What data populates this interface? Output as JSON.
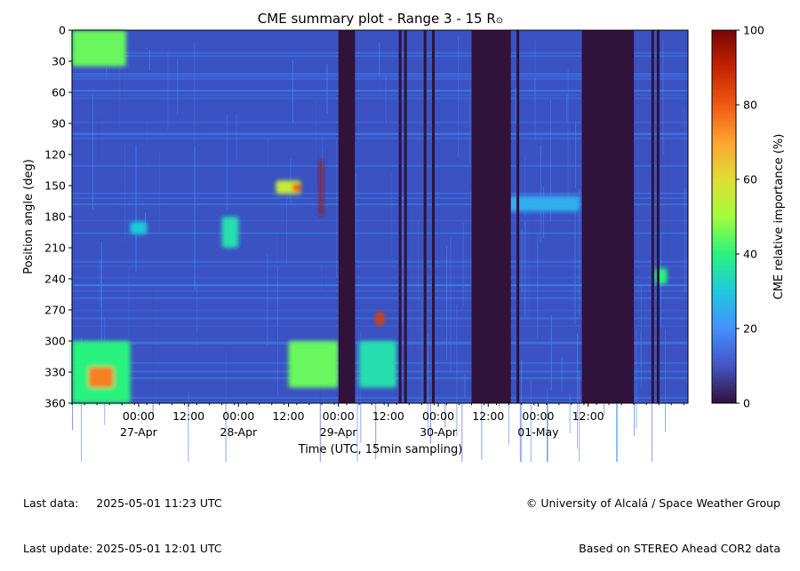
{
  "chart_data": {
    "type": "heatmap",
    "title": "CME summary plot - Range 3 - 15 R",
    "title_symbol": "⊙",
    "xlabel": "Time (UTC, 15min sampling)",
    "ylabel": "Position angle (deg)",
    "ylim": [
      0,
      360
    ],
    "y_inverted": true,
    "y_ticks": [
      "0",
      "30",
      "60",
      "90",
      "120",
      "150",
      "180",
      "210",
      "240",
      "270",
      "300",
      "330",
      "360"
    ],
    "x_range_hours": [
      -16,
      132
    ],
    "x_ticks": [
      {
        "h": 0,
        "time": "00:00",
        "date": "27-Apr"
      },
      {
        "h": 12,
        "time": "12:00",
        "date": ""
      },
      {
        "h": 24,
        "time": "00:00",
        "date": "28-Apr"
      },
      {
        "h": 36,
        "time": "12:00",
        "date": ""
      },
      {
        "h": 48,
        "time": "00:00",
        "date": "29-Apr"
      },
      {
        "h": 60,
        "time": "12:00",
        "date": ""
      },
      {
        "h": 72,
        "time": "00:00",
        "date": "30-Apr"
      },
      {
        "h": 84,
        "time": "12:00",
        "date": ""
      },
      {
        "h": 96,
        "time": "00:00",
        "date": "01-May"
      },
      {
        "h": 108,
        "time": "12:00",
        "date": ""
      }
    ],
    "colorbar": {
      "label": "CME relative importance (%)",
      "range": [
        0,
        100
      ],
      "ticks": [
        "0",
        "20",
        "40",
        "60",
        "80",
        "100"
      ]
    },
    "data_gaps_hours": [
      [
        48,
        52
      ],
      [
        80,
        89
      ],
      [
        106.5,
        119
      ]
    ],
    "thin_gaps_hours": [
      62.5,
      63.8,
      68.5,
      70.5,
      88.8,
      90.8,
      123.2,
      124.5
    ],
    "features": [
      {
        "t0": -16,
        "t1": -3,
        "pa0": 0,
        "pa1": 35,
        "v": 45
      },
      {
        "t0": -16,
        "t1": -2,
        "pa0": 300,
        "pa1": 360,
        "v": 40
      },
      {
        "t0": -12,
        "t1": -6,
        "pa0": 325,
        "pa1": 345,
        "v": 75
      },
      {
        "t0": 33,
        "t1": 39,
        "pa0": 145,
        "pa1": 158,
        "v": 55
      },
      {
        "t0": 37,
        "t1": 39,
        "pa0": 148,
        "pa1": 156,
        "v": 80
      },
      {
        "t0": 43.5,
        "t1": 44.2,
        "pa0": 125,
        "pa1": 180,
        "v": 95
      },
      {
        "t0": 36,
        "t1": 48,
        "pa0": 300,
        "pa1": 345,
        "v": 45
      },
      {
        "t0": 57,
        "t1": 59,
        "pa0": 272,
        "pa1": 285,
        "v": 85
      },
      {
        "t0": 53,
        "t1": 62,
        "pa0": 300,
        "pa1": 345,
        "v": 35
      },
      {
        "t0": 88,
        "t1": 106,
        "pa0": 160,
        "pa1": 175,
        "v": 25
      },
      {
        "t0": 124,
        "t1": 127,
        "pa0": 230,
        "pa1": 245,
        "v": 40
      },
      {
        "t0": 20,
        "t1": 24,
        "pa0": 180,
        "pa1": 210,
        "v": 35
      },
      {
        "t0": -2,
        "t1": 2,
        "pa0": 185,
        "pa1": 197,
        "v": 30
      }
    ]
  },
  "footer": {
    "last_data_label": "Last data:",
    "last_data_value": "2025-05-01 11:23 UTC",
    "last_update_label": "Last update:",
    "last_update_value": "2025-05-01 12:01 UTC",
    "credit": "© University of Alcalá / Space Weather Group",
    "source": "Based on STEREO Ahead COR2 data"
  }
}
